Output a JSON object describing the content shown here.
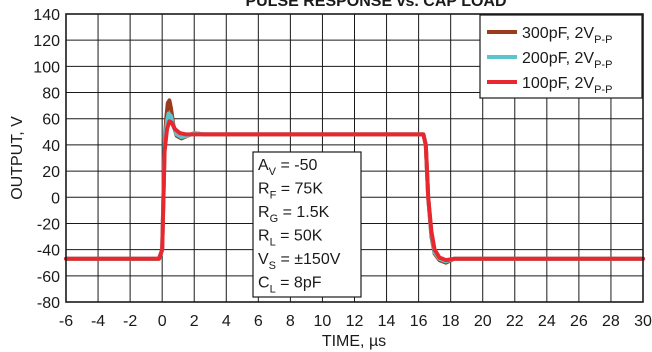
{
  "chart_data": {
    "type": "line",
    "title": "PULSE RESPONSE vs. CAP LOAD",
    "xlabel": "TIME, µs",
    "ylabel": "OUTPUT, V",
    "xlim": [
      -6,
      30
    ],
    "ylim": [
      -80,
      140
    ],
    "x_ticks": [
      -6,
      -4,
      -2,
      0,
      2,
      4,
      6,
      8,
      10,
      12,
      14,
      16,
      18,
      20,
      22,
      24,
      26,
      28,
      30
    ],
    "y_ticks": [
      -80,
      -60,
      -40,
      -20,
      0,
      20,
      40,
      60,
      80,
      100,
      120,
      140
    ],
    "grid": true,
    "legend_position": "top-right",
    "series": [
      {
        "name": "300pF, 2V",
        "name_sub": "P-P",
        "color": "#9c3a1d",
        "x": [
          -6,
          -0.2,
          0,
          0.15,
          0.25,
          0.35,
          0.45,
          0.55,
          0.7,
          0.9,
          1.2,
          1.6,
          2.0,
          2.6,
          3.5,
          16.3,
          16.45,
          16.6,
          16.8,
          17.0,
          17.3,
          17.7,
          18.2,
          30
        ],
        "y": [
          -47,
          -47,
          -40,
          40,
          60,
          72,
          74,
          68,
          55,
          47,
          45,
          47,
          49,
          48,
          48,
          48,
          40,
          0,
          -30,
          -43,
          -48,
          -50,
          -47,
          -47
        ]
      },
      {
        "name": "200pF, 2V",
        "name_sub": "P-P",
        "color": "#5bc4cc",
        "x": [
          -6,
          -0.2,
          0,
          0.15,
          0.3,
          0.4,
          0.55,
          0.7,
          0.9,
          1.2,
          1.6,
          2.0,
          2.6,
          3.5,
          16.3,
          16.45,
          16.6,
          16.8,
          17.0,
          17.3,
          17.7,
          18.2,
          30
        ],
        "y": [
          -47,
          -47,
          -40,
          40,
          58,
          64,
          62,
          54,
          48,
          46,
          47,
          49,
          48,
          48,
          48,
          40,
          0,
          -28,
          -42,
          -47,
          -49,
          -47,
          -47
        ]
      },
      {
        "name": "100pF, 2V",
        "name_sub": "P-P",
        "color": "#e8282e",
        "x": [
          -6,
          -0.2,
          0,
          0.15,
          0.3,
          0.45,
          0.6,
          0.8,
          1.1,
          1.5,
          2.0,
          3.0,
          16.3,
          16.45,
          16.6,
          16.8,
          17.0,
          17.3,
          17.7,
          18.2,
          30
        ],
        "y": [
          -47,
          -47,
          -40,
          35,
          52,
          58,
          57,
          52,
          49,
          48,
          48,
          48,
          48,
          40,
          0,
          -26,
          -40,
          -46,
          -48,
          -47,
          -47
        ]
      }
    ],
    "annotation_lines": [
      {
        "main": "A",
        "sub": "V",
        "rest": " = -50"
      },
      {
        "main": "R",
        "sub": "F",
        "rest": " = 75K"
      },
      {
        "main": "R",
        "sub": "G",
        "rest": " = 1.5K"
      },
      {
        "main": "R",
        "sub": "L",
        "rest": " = 50K"
      },
      {
        "main": "V",
        "sub": "S",
        "rest": " = ±150V"
      },
      {
        "main": "C",
        "sub": "L",
        "rest": " = 8pF"
      }
    ]
  }
}
